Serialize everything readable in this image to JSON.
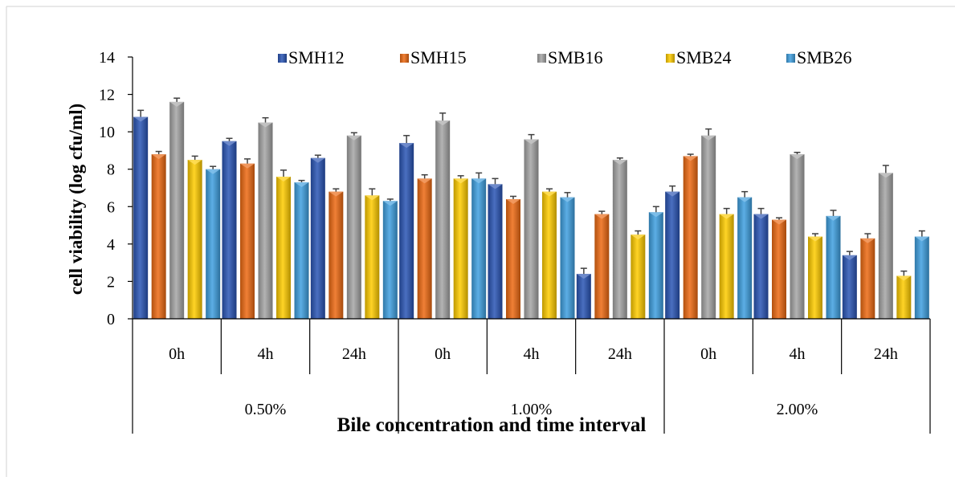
{
  "chart_data": {
    "type": "bar",
    "title": "",
    "xlabel": "Bile concentration and time interval",
    "ylabel": "cell viability (log cfu/ml)",
    "ylim": [
      0,
      14
    ],
    "yticks": [
      0,
      2,
      4,
      6,
      8,
      10,
      12,
      14
    ],
    "legend_position": "top",
    "groups": [
      {
        "label": "0.50%",
        "categories": [
          "0h",
          "4h",
          "24h"
        ]
      },
      {
        "label": "1.00%",
        "categories": [
          "0h",
          "4h",
          "24h"
        ]
      },
      {
        "label": "2.00%",
        "categories": [
          "0h",
          "4h",
          "24h"
        ]
      }
    ],
    "categories": [
      "0h",
      "4h",
      "24h",
      "0h",
      "4h",
      "24h",
      "0h",
      "4h",
      "24h"
    ],
    "series": [
      {
        "name": "SMH12",
        "color": "#2a55b5",
        "values": [
          10.8,
          9.5,
          8.6,
          9.4,
          7.2,
          2.4,
          6.8,
          5.6,
          3.4
        ],
        "errors": [
          0.35,
          0.15,
          0.15,
          0.4,
          0.3,
          0.3,
          0.3,
          0.3,
          0.2
        ]
      },
      {
        "name": "SMH15",
        "color": "#ed6a12",
        "values": [
          8.8,
          8.3,
          6.8,
          7.5,
          6.4,
          5.6,
          8.7,
          5.3,
          4.3
        ],
        "errors": [
          0.15,
          0.25,
          0.15,
          0.2,
          0.15,
          0.15,
          0.1,
          0.1,
          0.25
        ]
      },
      {
        "name": "SMB16",
        "color": "#a5a5a5",
        "values": [
          11.6,
          10.5,
          9.8,
          10.6,
          9.6,
          8.5,
          9.8,
          8.8,
          7.8
        ],
        "errors": [
          0.2,
          0.25,
          0.15,
          0.4,
          0.25,
          0.1,
          0.35,
          0.1,
          0.4
        ]
      },
      {
        "name": "SMB24",
        "color": "#ffcc00",
        "values": [
          8.5,
          7.6,
          6.6,
          7.5,
          6.8,
          4.5,
          5.6,
          4.4,
          2.3
        ],
        "errors": [
          0.2,
          0.35,
          0.35,
          0.15,
          0.15,
          0.2,
          0.3,
          0.15,
          0.25
        ]
      },
      {
        "name": "SMB26",
        "color": "#3fa0e0",
        "values": [
          8.0,
          7.3,
          6.3,
          7.5,
          6.5,
          5.7,
          6.5,
          5.5,
          4.4
        ],
        "errors": [
          0.15,
          0.1,
          0.1,
          0.3,
          0.25,
          0.3,
          0.3,
          0.3,
          0.3
        ]
      }
    ]
  }
}
